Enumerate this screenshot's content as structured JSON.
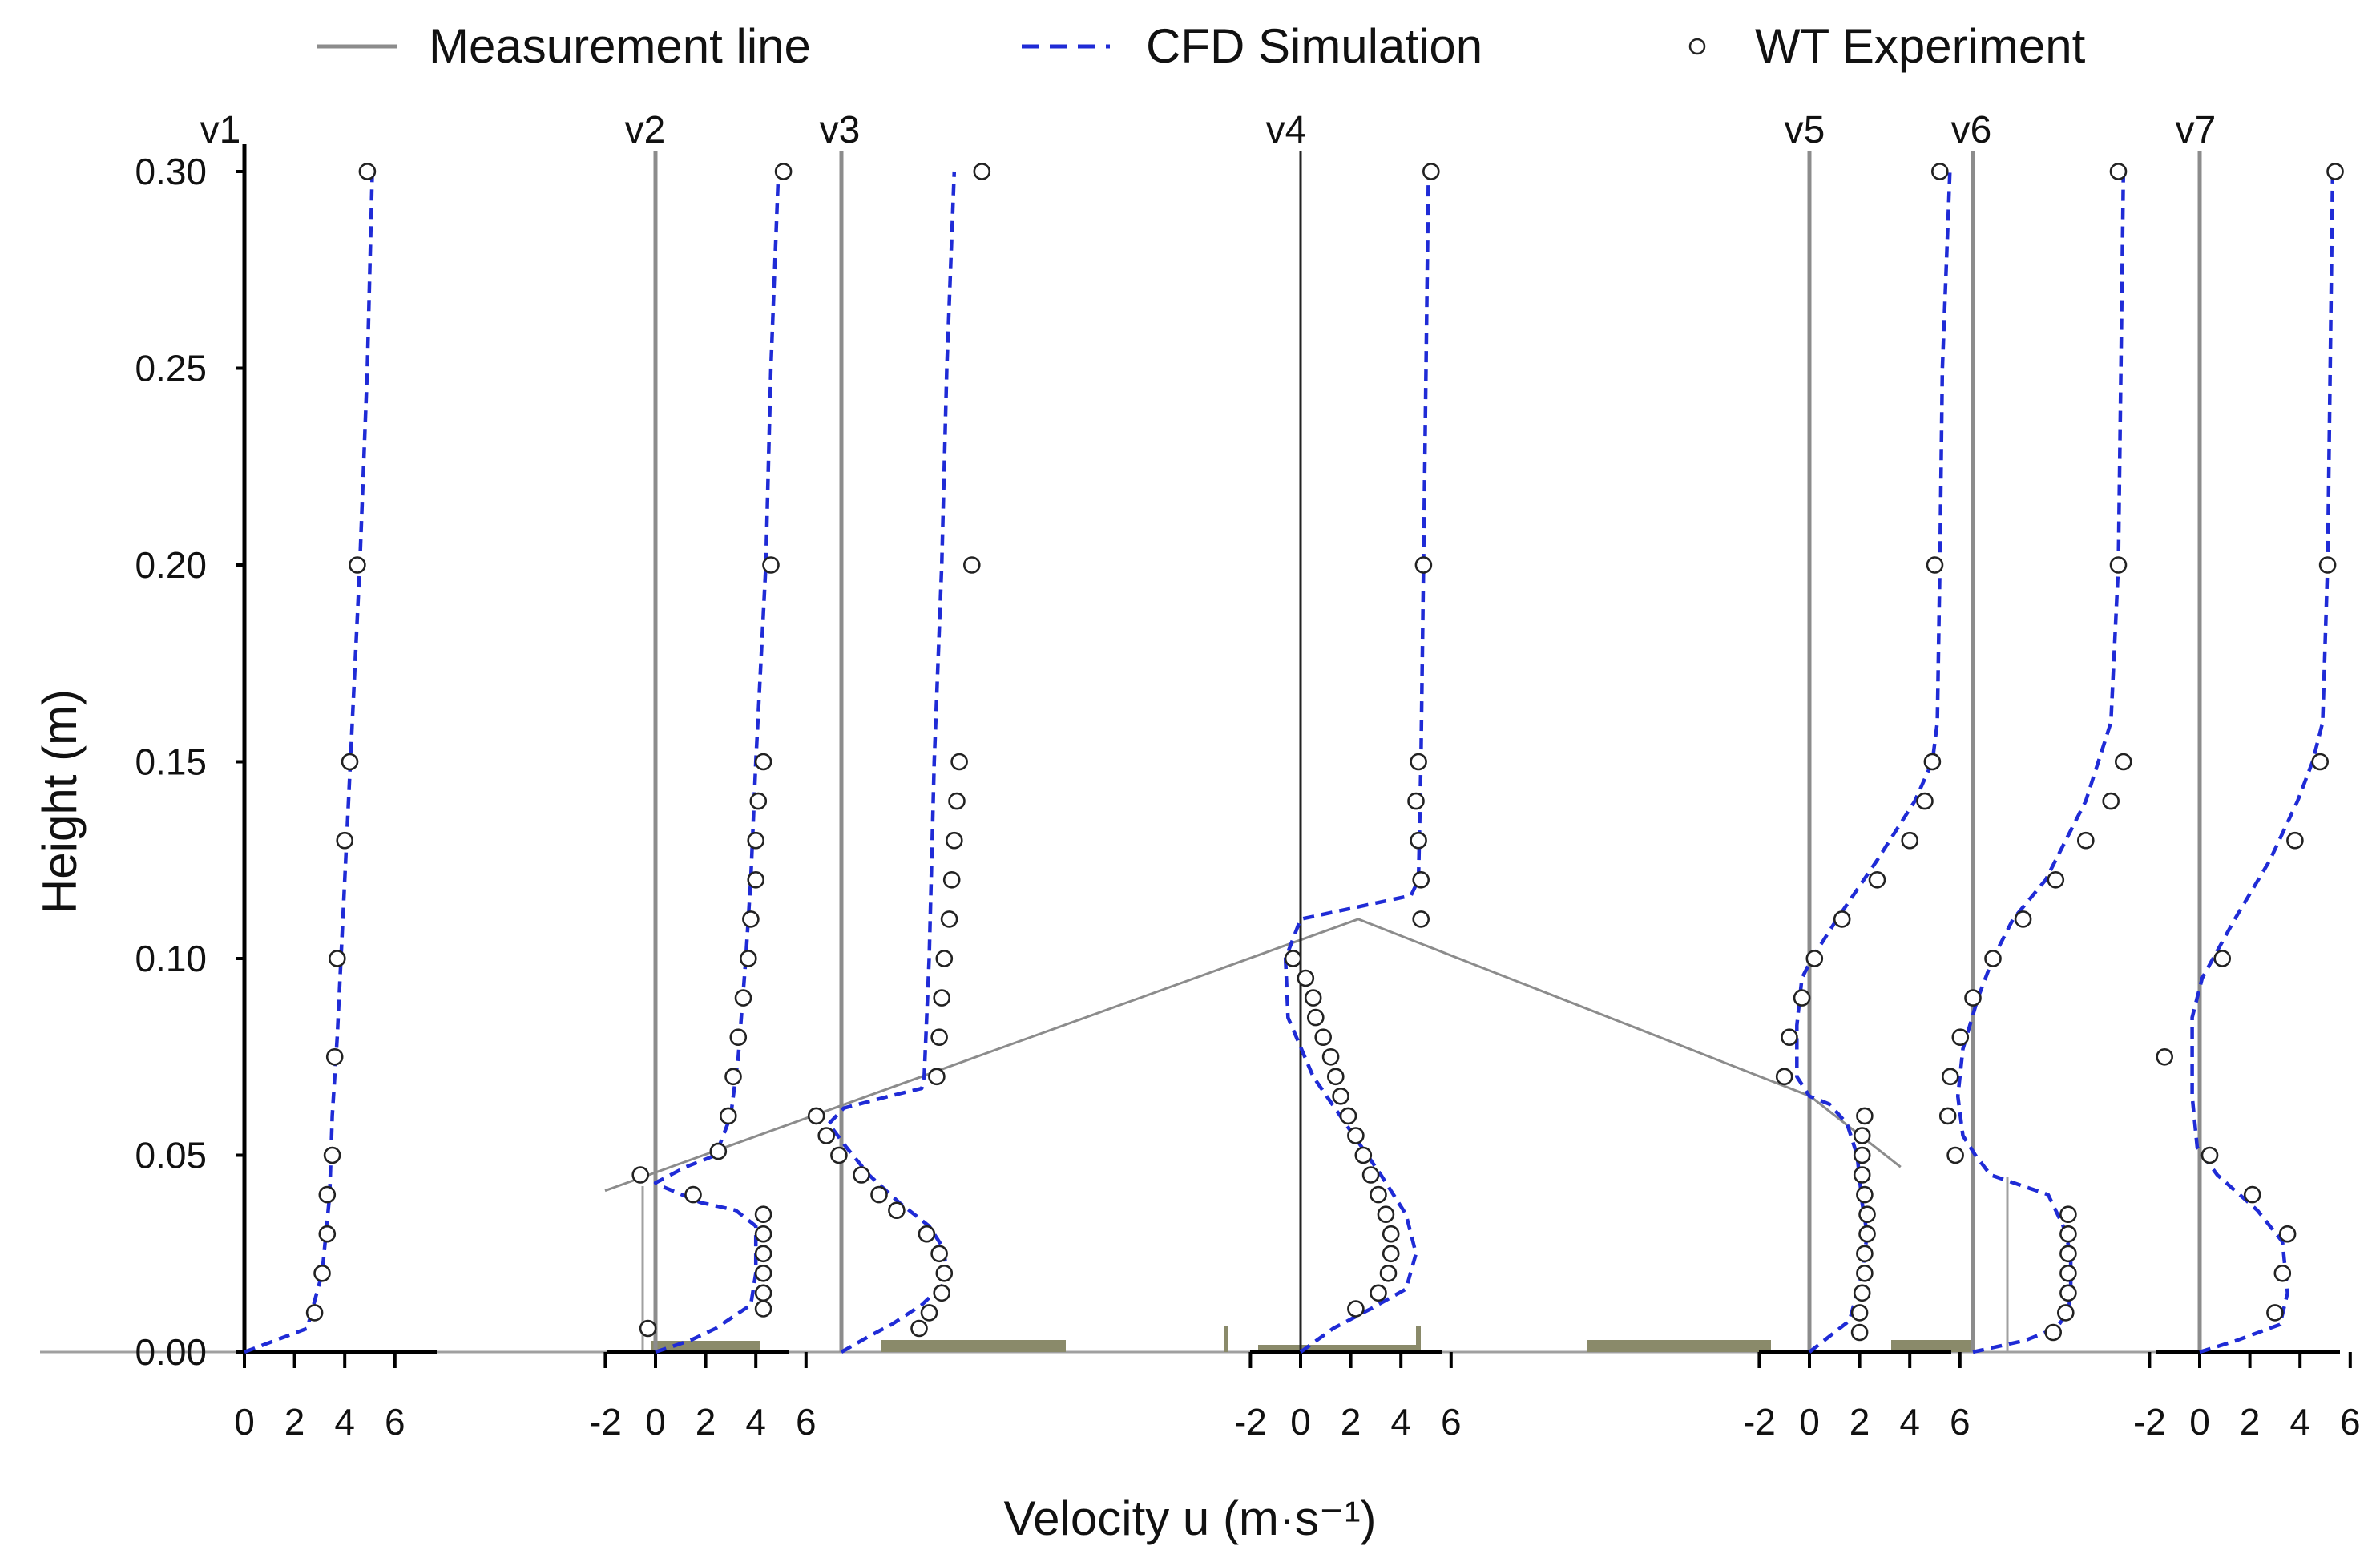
{
  "chart_data": {
    "type": "line",
    "xlabel": "Velocity u (m·s⁻¹)",
    "ylabel": "Height (m)",
    "ylim": [
      0,
      0.3
    ],
    "yticks": [
      "0.00",
      "0.05",
      "0.10",
      "0.15",
      "0.20",
      "0.25",
      "0.30"
    ],
    "xtick_labels": [
      "-2",
      "0",
      "2",
      "4",
      "6"
    ],
    "v1_xtick_labels": [
      "0",
      "2",
      "4",
      "6"
    ],
    "legend": {
      "placement": "top",
      "entries": [
        {
          "label": "Measurement line",
          "color": "#8c8c8c",
          "style": "solid"
        },
        {
          "label": "CFD Simulation",
          "color": "#1f2bd6",
          "style": "dashed"
        },
        {
          "label": "WT Experiment",
          "color": "#222222",
          "style": "open-circle"
        }
      ]
    },
    "colors": {
      "cfd": "#1f2bd6",
      "measurement": "#8c8c8c",
      "experiment": "#222222",
      "ground": "#8a8a6a"
    },
    "ground_profile": {
      "unit": "m",
      "points": [
        [
          0.0,
          0.041
        ],
        [
          0.5,
          0.11
        ],
        [
          0.8,
          0.065
        ],
        [
          0.86,
          0.047
        ]
      ]
    },
    "profiles": [
      {
        "label": "v1",
        "cfd": [
          [
            0,
            0
          ],
          [
            2.5,
            0.006
          ],
          [
            3.1,
            0.02
          ],
          [
            3.4,
            0.04
          ],
          [
            3.5,
            0.06
          ],
          [
            3.7,
            0.08
          ],
          [
            4.0,
            0.12
          ],
          [
            4.3,
            0.16
          ],
          [
            4.6,
            0.2
          ],
          [
            4.9,
            0.25
          ],
          [
            5.1,
            0.3
          ]
        ],
        "exp": [
          [
            2.8,
            0.01
          ],
          [
            3.1,
            0.02
          ],
          [
            3.3,
            0.03
          ],
          [
            3.3,
            0.04
          ],
          [
            3.5,
            0.05
          ],
          [
            3.6,
            0.075
          ],
          [
            3.7,
            0.1
          ],
          [
            4.0,
            0.13
          ],
          [
            4.2,
            0.15
          ],
          [
            4.5,
            0.2
          ],
          [
            4.9,
            0.3
          ]
        ]
      },
      {
        "label": "v2",
        "cfd": [
          [
            0,
            0.0
          ],
          [
            1.4,
            0.003
          ],
          [
            2.4,
            0.006
          ],
          [
            3.8,
            0.012
          ],
          [
            4.0,
            0.02
          ],
          [
            4.0,
            0.032
          ],
          [
            3.2,
            0.036
          ],
          [
            1.8,
            0.038
          ],
          [
            0.3,
            0.042
          ],
          [
            0,
            0.043
          ],
          [
            1.2,
            0.047
          ],
          [
            2.4,
            0.05
          ],
          [
            2.7,
            0.055
          ],
          [
            3.0,
            0.06
          ],
          [
            3.3,
            0.075
          ],
          [
            3.6,
            0.1
          ],
          [
            3.8,
            0.12
          ],
          [
            4.0,
            0.15
          ],
          [
            4.4,
            0.2
          ],
          [
            4.6,
            0.25
          ],
          [
            4.9,
            0.3
          ]
        ],
        "exp": [
          [
            -0.3,
            0.006
          ],
          [
            -0.6,
            0.045
          ],
          [
            1.5,
            0.04
          ],
          [
            2.5,
            0.051
          ],
          [
            2.9,
            0.06
          ],
          [
            3.1,
            0.07
          ],
          [
            3.3,
            0.08
          ],
          [
            3.5,
            0.09
          ],
          [
            3.7,
            0.1
          ],
          [
            3.8,
            0.11
          ],
          [
            4.0,
            0.12
          ],
          [
            4.0,
            0.13
          ],
          [
            4.1,
            0.14
          ],
          [
            4.3,
            0.15
          ],
          [
            4.6,
            0.2
          ],
          [
            5.1,
            0.3
          ],
          [
            4.3,
            0.011
          ],
          [
            4.3,
            0.015
          ],
          [
            4.3,
            0.02
          ],
          [
            4.3,
            0.025
          ],
          [
            4.3,
            0.03
          ],
          [
            4.3,
            0.035
          ]
        ]
      },
      {
        "label": "v3",
        "cfd": [
          [
            0,
            0
          ],
          [
            1.1,
            0.004
          ],
          [
            2.0,
            0.007
          ],
          [
            3.2,
            0.012
          ],
          [
            4.2,
            0.018
          ],
          [
            4.1,
            0.026
          ],
          [
            3.5,
            0.032
          ],
          [
            2.3,
            0.038
          ],
          [
            1.1,
            0.045
          ],
          [
            0.2,
            0.052
          ],
          [
            -0.5,
            0.058
          ],
          [
            0.1,
            0.062
          ],
          [
            1.9,
            0.065
          ],
          [
            3.2,
            0.067
          ],
          [
            3.3,
            0.07
          ],
          [
            3.5,
            0.1
          ],
          [
            3.7,
            0.15
          ],
          [
            4.0,
            0.2
          ],
          [
            4.2,
            0.25
          ],
          [
            4.5,
            0.3
          ]
        ],
        "exp": [
          [
            3.1,
            0.006
          ],
          [
            3.5,
            0.01
          ],
          [
            4.0,
            0.015
          ],
          [
            4.1,
            0.02
          ],
          [
            3.9,
            0.025
          ],
          [
            3.4,
            0.03
          ],
          [
            2.2,
            0.036
          ],
          [
            1.5,
            0.04
          ],
          [
            0.8,
            0.045
          ],
          [
            -0.1,
            0.05
          ],
          [
            -0.6,
            0.055
          ],
          [
            -1.0,
            0.06
          ],
          [
            3.8,
            0.07
          ],
          [
            3.9,
            0.08
          ],
          [
            4.0,
            0.09
          ],
          [
            4.1,
            0.1
          ],
          [
            4.3,
            0.11
          ],
          [
            4.4,
            0.12
          ],
          [
            4.5,
            0.13
          ],
          [
            4.6,
            0.14
          ],
          [
            4.7,
            0.15
          ],
          [
            5.2,
            0.2
          ],
          [
            5.6,
            0.3
          ]
        ]
      },
      {
        "label": "v4",
        "cfd": [
          [
            0,
            0
          ],
          [
            1.3,
            0.006
          ],
          [
            2.8,
            0.011
          ],
          [
            4.2,
            0.016
          ],
          [
            4.6,
            0.025
          ],
          [
            4.2,
            0.035
          ],
          [
            3.2,
            0.045
          ],
          [
            1.8,
            0.058
          ],
          [
            0.5,
            0.07
          ],
          [
            -0.5,
            0.085
          ],
          [
            -0.6,
            0.1
          ],
          [
            0,
            0.11
          ],
          [
            2.2,
            0.113
          ],
          [
            4.4,
            0.116
          ],
          [
            4.7,
            0.12
          ],
          [
            4.8,
            0.15
          ],
          [
            4.9,
            0.2
          ],
          [
            5.0,
            0.25
          ],
          [
            5.1,
            0.3
          ]
        ],
        "exp": [
          [
            2.2,
            0.011
          ],
          [
            3.1,
            0.015
          ],
          [
            3.5,
            0.02
          ],
          [
            3.6,
            0.025
          ],
          [
            3.6,
            0.03
          ],
          [
            3.4,
            0.035
          ],
          [
            3.1,
            0.04
          ],
          [
            2.8,
            0.045
          ],
          [
            2.5,
            0.05
          ],
          [
            2.2,
            0.055
          ],
          [
            1.9,
            0.06
          ],
          [
            1.6,
            0.065
          ],
          [
            1.4,
            0.07
          ],
          [
            1.2,
            0.075
          ],
          [
            0.9,
            0.08
          ],
          [
            0.6,
            0.085
          ],
          [
            0.5,
            0.09
          ],
          [
            0.2,
            0.095
          ],
          [
            -0.3,
            0.1
          ],
          [
            4.8,
            0.11
          ],
          [
            4.8,
            0.12
          ],
          [
            4.7,
            0.13
          ],
          [
            4.6,
            0.14
          ],
          [
            4.7,
            0.15
          ],
          [
            4.9,
            0.2
          ],
          [
            5.2,
            0.3
          ]
        ]
      },
      {
        "label": "v5",
        "cfd": [
          [
            0,
            0
          ],
          [
            1.6,
            0.008
          ],
          [
            2.1,
            0.02
          ],
          [
            2.3,
            0.03
          ],
          [
            2.1,
            0.038
          ],
          [
            1.9,
            0.05
          ],
          [
            1.5,
            0.058
          ],
          [
            0.8,
            0.063
          ],
          [
            0,
            0.065
          ],
          [
            -0.5,
            0.07
          ],
          [
            -0.5,
            0.083
          ],
          [
            -0.3,
            0.095
          ],
          [
            0.1,
            0.1
          ],
          [
            1.1,
            0.11
          ],
          [
            2.7,
            0.125
          ],
          [
            4.2,
            0.14
          ],
          [
            4.9,
            0.15
          ],
          [
            5.1,
            0.16
          ],
          [
            5.2,
            0.2
          ],
          [
            5.3,
            0.25
          ],
          [
            5.6,
            0.3
          ]
        ],
        "exp": [
          [
            2.0,
            0.005
          ],
          [
            2.0,
            0.01
          ],
          [
            2.1,
            0.015
          ],
          [
            2.2,
            0.02
          ],
          [
            2.2,
            0.025
          ],
          [
            2.3,
            0.03
          ],
          [
            2.3,
            0.035
          ],
          [
            2.2,
            0.04
          ],
          [
            2.1,
            0.045
          ],
          [
            2.1,
            0.05
          ],
          [
            2.1,
            0.055
          ],
          [
            2.2,
            0.06
          ],
          [
            -1.0,
            0.07
          ],
          [
            -0.8,
            0.08
          ],
          [
            -0.3,
            0.09
          ],
          [
            0.2,
            0.1
          ],
          [
            1.3,
            0.11
          ],
          [
            2.7,
            0.12
          ],
          [
            4.0,
            0.13
          ],
          [
            4.6,
            0.14
          ],
          [
            4.9,
            0.15
          ],
          [
            5.0,
            0.2
          ],
          [
            5.2,
            0.3
          ]
        ]
      },
      {
        "label": "v6",
        "cfd": [
          [
            0,
            0
          ],
          [
            2.1,
            0.003
          ],
          [
            3.3,
            0.006
          ],
          [
            3.8,
            0.01
          ],
          [
            3.9,
            0.015
          ],
          [
            3.9,
            0.025
          ],
          [
            3.6,
            0.032
          ],
          [
            3.0,
            0.04
          ],
          [
            0.7,
            0.045
          ],
          [
            0.1,
            0.05
          ],
          [
            -0.4,
            0.055
          ],
          [
            -0.6,
            0.065
          ],
          [
            -0.4,
            0.077
          ],
          [
            0.2,
            0.09
          ],
          [
            0.8,
            0.1
          ],
          [
            1.6,
            0.11
          ],
          [
            2.9,
            0.12
          ],
          [
            4.5,
            0.14
          ],
          [
            5.5,
            0.16
          ],
          [
            5.8,
            0.2
          ],
          [
            5.9,
            0.25
          ],
          [
            6.0,
            0.3
          ]
        ],
        "exp": [
          [
            3.2,
            0.005
          ],
          [
            3.7,
            0.01
          ],
          [
            3.8,
            0.015
          ],
          [
            3.8,
            0.02
          ],
          [
            3.8,
            0.025
          ],
          [
            3.8,
            0.03
          ],
          [
            3.8,
            0.035
          ],
          [
            -0.7,
            0.05
          ],
          [
            -1.0,
            0.06
          ],
          [
            -0.9,
            0.07
          ],
          [
            -0.5,
            0.08
          ],
          [
            0.0,
            0.09
          ],
          [
            0.8,
            0.1
          ],
          [
            2.0,
            0.11
          ],
          [
            3.3,
            0.12
          ],
          [
            4.5,
            0.13
          ],
          [
            5.5,
            0.14
          ],
          [
            6.0,
            0.15
          ],
          [
            5.8,
            0.2
          ],
          [
            5.8,
            0.3
          ]
        ]
      },
      {
        "label": "v7",
        "cfd": [
          [
            0,
            0
          ],
          [
            1.5,
            0.003
          ],
          [
            3.2,
            0.007
          ],
          [
            3.5,
            0.015
          ],
          [
            3.3,
            0.028
          ],
          [
            2.3,
            0.036
          ],
          [
            0.7,
            0.045
          ],
          [
            -0.1,
            0.052
          ],
          [
            -0.3,
            0.065
          ],
          [
            -0.3,
            0.085
          ],
          [
            0.1,
            0.095
          ],
          [
            1.4,
            0.11
          ],
          [
            2.8,
            0.125
          ],
          [
            3.9,
            0.14
          ],
          [
            4.5,
            0.15
          ],
          [
            4.9,
            0.16
          ],
          [
            5.1,
            0.2
          ],
          [
            5.2,
            0.25
          ],
          [
            5.3,
            0.3
          ]
        ],
        "exp": [
          [
            3.0,
            0.01
          ],
          [
            3.3,
            0.02
          ],
          [
            3.5,
            0.03
          ],
          [
            2.1,
            0.04
          ],
          [
            0.4,
            0.05
          ],
          [
            -1.4,
            0.075
          ],
          [
            0.9,
            0.1
          ],
          [
            3.8,
            0.13
          ],
          [
            4.8,
            0.15
          ],
          [
            5.1,
            0.2
          ],
          [
            5.4,
            0.3
          ]
        ]
      }
    ]
  }
}
